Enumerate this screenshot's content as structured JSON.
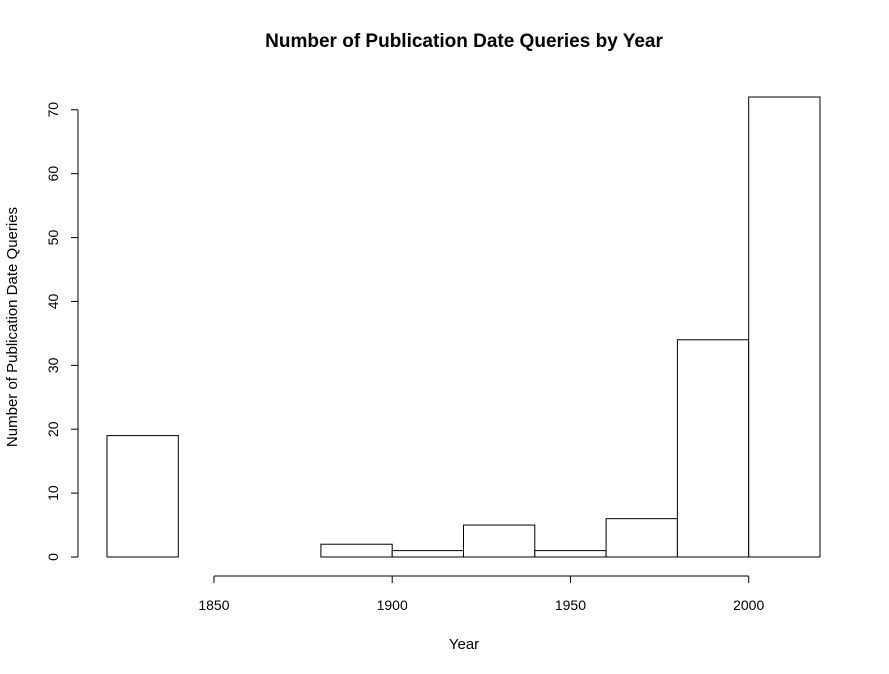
{
  "chart_data": {
    "type": "bar",
    "title": "Number of Publication Date Queries by Year",
    "xlabel": "Year",
    "ylabel": "Number of Publication Date Queries",
    "bins": [
      {
        "from": 1820,
        "to": 1840,
        "value": 19
      },
      {
        "from": 1840,
        "to": 1860,
        "value": 0
      },
      {
        "from": 1860,
        "to": 1880,
        "value": 0
      },
      {
        "from": 1880,
        "to": 1900,
        "value": 2
      },
      {
        "from": 1900,
        "to": 1920,
        "value": 1
      },
      {
        "from": 1920,
        "to": 1940,
        "value": 5
      },
      {
        "from": 1940,
        "to": 1960,
        "value": 1
      },
      {
        "from": 1960,
        "to": 1980,
        "value": 6
      },
      {
        "from": 1980,
        "to": 2000,
        "value": 34
      },
      {
        "from": 2000,
        "to": 2020,
        "value": 72
      }
    ],
    "x_ticks": [
      1850,
      1900,
      1950,
      2000
    ],
    "y_ticks": [
      0,
      10,
      20,
      30,
      40,
      50,
      60,
      70
    ],
    "grid": false,
    "colors": {
      "bar_fill": "#ffffff",
      "bar_stroke": "#000000"
    }
  }
}
